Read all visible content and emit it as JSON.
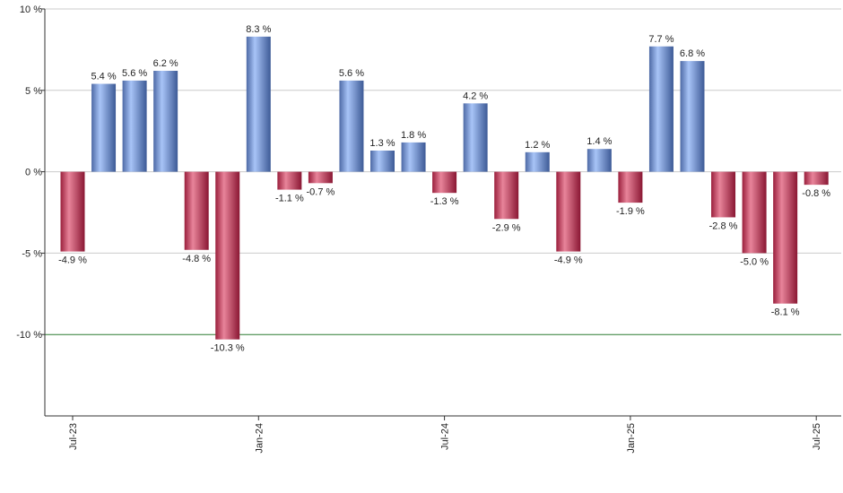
{
  "chart_data": {
    "type": "bar",
    "title": "",
    "xlabel": "",
    "ylabel": "",
    "ylim": [
      -15,
      10
    ],
    "y_ticks": [
      {
        "value": 10,
        "label": "10 %"
      },
      {
        "value": 5,
        "label": "5 %"
      },
      {
        "value": 0,
        "label": "0 %"
      },
      {
        "value": -5,
        "label": "-5 %"
      },
      {
        "value": -10,
        "label": "-10 %"
      }
    ],
    "x_ticks": [
      {
        "index": 0,
        "label": "Jul-23"
      },
      {
        "index": 6,
        "label": "Jan-24"
      },
      {
        "index": 12,
        "label": "Jul-24"
      },
      {
        "index": 18,
        "label": "Jan-25"
      },
      {
        "index": 24,
        "label": "Jul-25"
      }
    ],
    "reference_line": {
      "value": -10,
      "color": "#2e7d32"
    },
    "values": [
      -4.9,
      5.4,
      5.6,
      6.2,
      -4.8,
      -10.3,
      8.3,
      -1.1,
      -0.7,
      5.6,
      1.3,
      1.8,
      -1.3,
      4.2,
      -2.9,
      1.2,
      -4.9,
      1.4,
      -1.9,
      7.7,
      6.8,
      -2.8,
      -5.0,
      -8.1,
      -0.8
    ],
    "value_labels": [
      "-4.9 %",
      "5.4 %",
      "5.6 %",
      "6.2 %",
      "-4.8 %",
      "-10.3 %",
      "8.3 %",
      "-1.1 %",
      "-0.7 %",
      "5.6 %",
      "1.3 %",
      "1.8 %",
      "-1.3 %",
      "4.2 %",
      "-2.9 %",
      "1.2 %",
      "-4.9 %",
      "1.4 %",
      "-1.9 %",
      "7.7 %",
      "6.8 %",
      "-2.8 %",
      "-5.0 %",
      "-8.1 %",
      "-0.8 %"
    ],
    "colors": {
      "positive": "#7a9ee0",
      "negative": "#c93a5a",
      "grid": "#cccccc",
      "axis": "#333333"
    }
  }
}
